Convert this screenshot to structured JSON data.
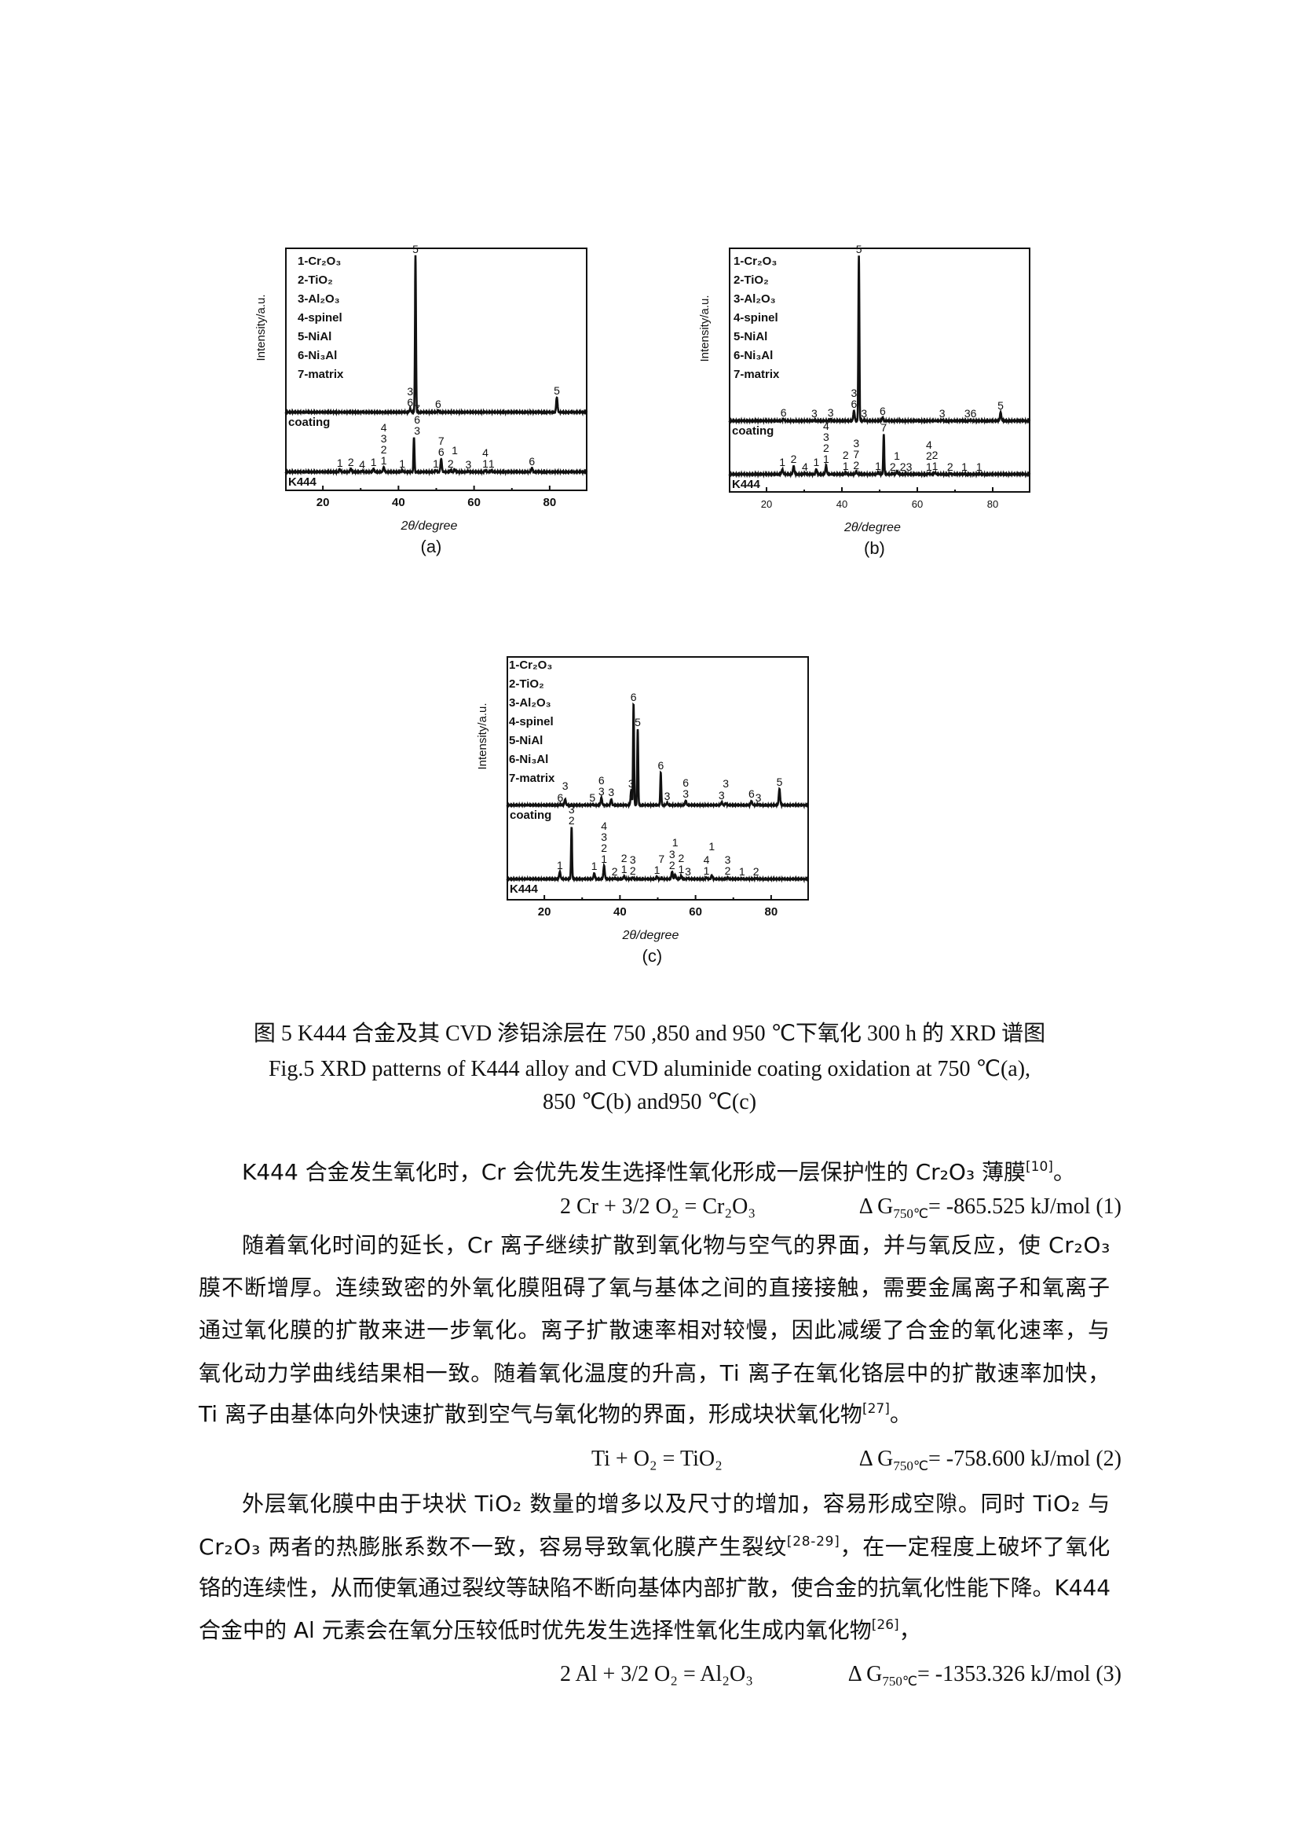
{
  "charts": [
    {
      "id": "a",
      "type": "line",
      "sublabel": "(a)",
      "ylabel": "Intensity/a.u.",
      "xlabel": "2θ/degree",
      "xlim": [
        10,
        90
      ],
      "xticks": [
        "20",
        "40",
        "60",
        "80"
      ],
      "legend": [
        "1-Cr₂O₃",
        "2-TiO₂",
        "3-Al₂O₃",
        "4-spinel",
        "5-NiAl",
        "6-Ni₃Al",
        "7-matrix"
      ],
      "legend_placement": "top-left",
      "traces": [
        {
          "label": "coating",
          "peaks": [
            [
              43.1,
              2,
              [
                "3",
                "6"
              ]
            ],
            [
              44.5,
              95,
              [
                "5"
              ]
            ],
            [
              50.5,
              1,
              [
                "6"
              ]
            ],
            [
              81.9,
              9,
              [
                "5"
              ]
            ]
          ]
        },
        {
          "label": "K444",
          "peaks": [
            [
              24.5,
              1.5,
              [
                "1"
              ]
            ],
            [
              27.4,
              2,
              [
                "2"
              ]
            ],
            [
              30.4,
              0.5,
              [
                "4"
              ]
            ],
            [
              33.4,
              2,
              [
                "1"
              ]
            ],
            [
              36.1,
              3,
              [
                "4",
                "3",
                "2",
                "1"
              ]
            ],
            [
              41,
              1,
              [
                "1"
              ]
            ],
            [
              44.1,
              21,
              [
                "7",
                "6",
                "3"
              ]
            ],
            [
              49.9,
              1,
              [
                "1"
              ]
            ],
            [
              51.3,
              8,
              [
                "7",
                "6"
              ]
            ],
            [
              53.8,
              1,
              [
                "2"
              ]
            ],
            [
              54.9,
              1.5,
              [
                "1"
              ]
            ],
            [
              58.5,
              0.5,
              [
                "3"
              ]
            ],
            [
              63,
              1,
              [
                "4",
                "1"
              ]
            ],
            [
              64.6,
              1,
              [
                "1"
              ]
            ],
            [
              75.3,
              2.5,
              [
                "6"
              ]
            ]
          ]
        }
      ]
    },
    {
      "id": "b",
      "type": "line",
      "sublabel": "(b)",
      "ylabel": "Intensity/a.u.",
      "xlabel": "2θ/degree",
      "xlim": [
        10,
        90
      ],
      "xticks": [
        "20",
        "40",
        "60",
        "80"
      ],
      "legend": [
        "1-Cr₂O₃",
        "2-TiO₂",
        "3-Al₂O₃",
        "4-spinel",
        "5-NiAl",
        "6-Ni₃Al",
        "7-matrix"
      ],
      "legend_placement": "top-left",
      "traces": [
        {
          "label": "coating",
          "peaks": [
            [
              24.5,
              1,
              [
                "6"
              ]
            ],
            [
              32.7,
              0.5,
              [
                "3"
              ]
            ],
            [
              37,
              1,
              [
                "3"
              ]
            ],
            [
              43.2,
              6,
              [
                "3",
                "6"
              ]
            ],
            [
              44.5,
              95,
              [
                "5"
              ]
            ],
            [
              45.9,
              0.5,
              [
                "3"
              ]
            ],
            [
              50.8,
              2,
              [
                "6"
              ]
            ],
            [
              66.6,
              0.5,
              [
                "3"
              ]
            ],
            [
              74.1,
              0.5,
              [
                "36"
              ]
            ],
            [
              82.1,
              5,
              [
                "5"
              ]
            ]
          ]
        },
        {
          "label": "K444",
          "peaks": [
            [
              24.2,
              3,
              [
                "1"
              ]
            ],
            [
              27.2,
              5,
              [
                "2"
              ]
            ],
            [
              30.2,
              0.5,
              [
                "4"
              ]
            ],
            [
              33.2,
              3,
              [
                "1"
              ]
            ],
            [
              35.8,
              5,
              [
                "4",
                "3",
                "2",
                "1"
              ]
            ],
            [
              41,
              1,
              [
                "2",
                "1"
              ]
            ],
            [
              43.8,
              1.5,
              [
                "3",
                "7",
                "2"
              ]
            ],
            [
              49.6,
              1,
              [
                "1"
              ]
            ],
            [
              51.1,
              23,
              [
                "7"
              ]
            ],
            [
              53.5,
              0.5,
              [
                "2"
              ]
            ],
            [
              54.6,
              1.5,
              [
                "1"
              ]
            ],
            [
              57,
              0.5,
              [
                "23"
              ]
            ],
            [
              63.1,
              0.5,
              [
                "4",
                "2",
                "1"
              ]
            ],
            [
              64.7,
              1,
              [
                "2",
                "1"
              ]
            ],
            [
              68.7,
              0.5,
              [
                "2"
              ]
            ],
            [
              72.5,
              0.3,
              [
                "1"
              ]
            ],
            [
              76.4,
              0.3,
              [
                "1"
              ]
            ]
          ]
        }
      ]
    },
    {
      "id": "c",
      "type": "line",
      "sublabel": "(c)",
      "ylabel": "Intensity/a.u.",
      "xlabel": "2θ/degree",
      "xlim": [
        10,
        90
      ],
      "xticks": [
        "20",
        "40",
        "60",
        "80"
      ],
      "legend": [
        "1-Cr₂O₃",
        "2-TiO₂",
        "3-Al₂O₃",
        "4-spinel",
        "5-NiAl",
        "6-Ni₃Al",
        "7-matrix"
      ],
      "legend_placement": "top-left",
      "traces": [
        {
          "label": "coating",
          "peaks": [
            [
              24.2,
              0.5,
              [
                "6"
              ]
            ],
            [
              25.5,
              4,
              [
                "3"
              ]
            ],
            [
              32.7,
              0.5,
              [
                "5"
              ]
            ],
            [
              35.1,
              5,
              [
                "6",
                "3"
              ]
            ],
            [
              37.7,
              4,
              [
                "3"
              ]
            ],
            [
              43,
              10,
              [
                "3"
              ]
            ],
            [
              43.6,
              68,
              [
                "6"
              ]
            ],
            [
              44.7,
              51,
              [
                "5"
              ]
            ],
            [
              50.8,
              22,
              [
                "6"
              ]
            ],
            [
              52.5,
              1.5,
              [
                "3"
              ]
            ],
            [
              57.4,
              3,
              [
                "6",
                "3"
              ]
            ],
            [
              66.9,
              2,
              [
                "3"
              ]
            ],
            [
              68,
              1.5,
              [
                "3"
              ]
            ],
            [
              74.8,
              3,
              [
                "6"
              ]
            ],
            [
              76.6,
              0.5,
              [
                "3"
              ]
            ],
            [
              82.2,
              11,
              [
                "5"
              ]
            ]
          ]
        },
        {
          "label": "K444",
          "peaks": [
            [
              24.1,
              5,
              [
                "1"
              ]
            ],
            [
              27.2,
              35,
              [
                "3",
                "2"
              ]
            ],
            [
              33.2,
              4,
              [
                "1"
              ]
            ],
            [
              35.8,
              9,
              [
                "4",
                "3",
                "2",
                "1"
              ]
            ],
            [
              38.6,
              0.5,
              [
                "2"
              ]
            ],
            [
              41.1,
              2,
              [
                "2",
                "1"
              ]
            ],
            [
              43.4,
              1,
              [
                "3",
                "2"
              ]
            ],
            [
              49.8,
              1.5,
              [
                "1"
              ]
            ],
            [
              51,
              0.5,
              [
                "7"
              ]
            ],
            [
              53.8,
              5,
              [
                "3",
                "2"
              ]
            ],
            [
              54.6,
              3,
              [
                "1"
              ]
            ],
            [
              56.2,
              2,
              [
                "2",
                "1"
              ]
            ],
            [
              58,
              0.5,
              [
                "3"
              ]
            ],
            [
              62.9,
              1,
              [
                "4",
                "1"
              ]
            ],
            [
              64.3,
              2.5,
              [
                "1"
              ]
            ],
            [
              68.5,
              1,
              [
                "3",
                "2"
              ]
            ],
            [
              72.3,
              0.3,
              [
                "1"
              ]
            ],
            [
              76,
              0.5,
              [
                "2"
              ]
            ]
          ]
        }
      ]
    }
  ],
  "caption": {
    "cn": "图 5 K444 合金及其 CVD 渗铝涂层在 750 ,850 and 950 ℃下氧化 300 h  的 XRD 谱图",
    "en1": "Fig.5 XRD patterns of K444 alloy and CVD aluminide coating oxidation at 750 ℃(a),",
    "en2": "850 ℃(b) and950 ℃(c)"
  },
  "body": {
    "p1": [
      [
        {
          "t": "K444 合金发生氧化时，Cr 会优先发生选择性氧化形成一层保护性的 Cr₂O₃ 薄膜"
        },
        {
          "sup": "[10]"
        },
        {
          "t": "。"
        }
      ]
    ],
    "eq1": {
      "lhs": "2 Cr + 3/2 O₂ = Cr₂O₃",
      "dg": "Δ G",
      "sub": "750℃",
      "rhs": "= -865.525 kJ/mol (1)"
    },
    "p2": [
      [
        {
          "t": "随着氧化时间的延长，Cr 离子继续扩散到氧化物与空气的界面，并与氧反应，使 Cr₂O₃"
        }
      ],
      [
        {
          "t": "膜不断增厚。连续致密的外氧化膜阻碍了氧与基体之间的直接接触，需要金属离子和氧离子"
        }
      ],
      [
        {
          "t": "通过氧化膜的扩散来进一步氧化。离子扩散速率相对较慢，因此减缓了合金的氧化速率，与"
        }
      ],
      [
        {
          "t": "氧化动力学曲线结果相一致。随着氧化温度的升高，Ti 离子在氧化铬层中的扩散速率加快，"
        }
      ],
      [
        {
          "t": "Ti 离子由基体向外快速扩散到空气与氧化物的界面，形成块状氧化物"
        },
        {
          "sup": "[27]"
        },
        {
          "t": "。"
        }
      ]
    ],
    "eq2": {
      "lhs": "Ti + O₂ = TiO₂",
      "dg": "Δ G",
      "sub": "750℃",
      "rhs": "= -758.600 kJ/mol (2)"
    },
    "p3": [
      [
        {
          "t": "外层氧化膜中由于块状 TiO₂ 数量的增多以及尺寸的增加，容易形成空隙。同时 TiO₂ 与"
        }
      ],
      [
        {
          "t": "Cr₂O₃ 两者的热膨胀系数不一致，容易导致氧化膜产生裂纹"
        },
        {
          "sup": "[28-29]"
        },
        {
          "t": "，在一定程度上破坏了氧化"
        }
      ],
      [
        {
          "t": "铬的连续性，从而使氧通过裂纹等缺陷不断向基体内部扩散，使合金的抗氧化性能下降。K444"
        }
      ],
      [
        {
          "t": "合金中的 Al 元素会在氧分压较低时优先发生选择性氧化生成内氧化物"
        },
        {
          "sup": "[26]"
        },
        {
          "t": "，"
        }
      ]
    ],
    "eq3": {
      "lhs": "2 Al + 3/2 O₂ = Al₂O₃",
      "dg": "Δ G",
      "sub": "750℃",
      "rhs": "= -1353.326 kJ/mol (3)"
    }
  }
}
